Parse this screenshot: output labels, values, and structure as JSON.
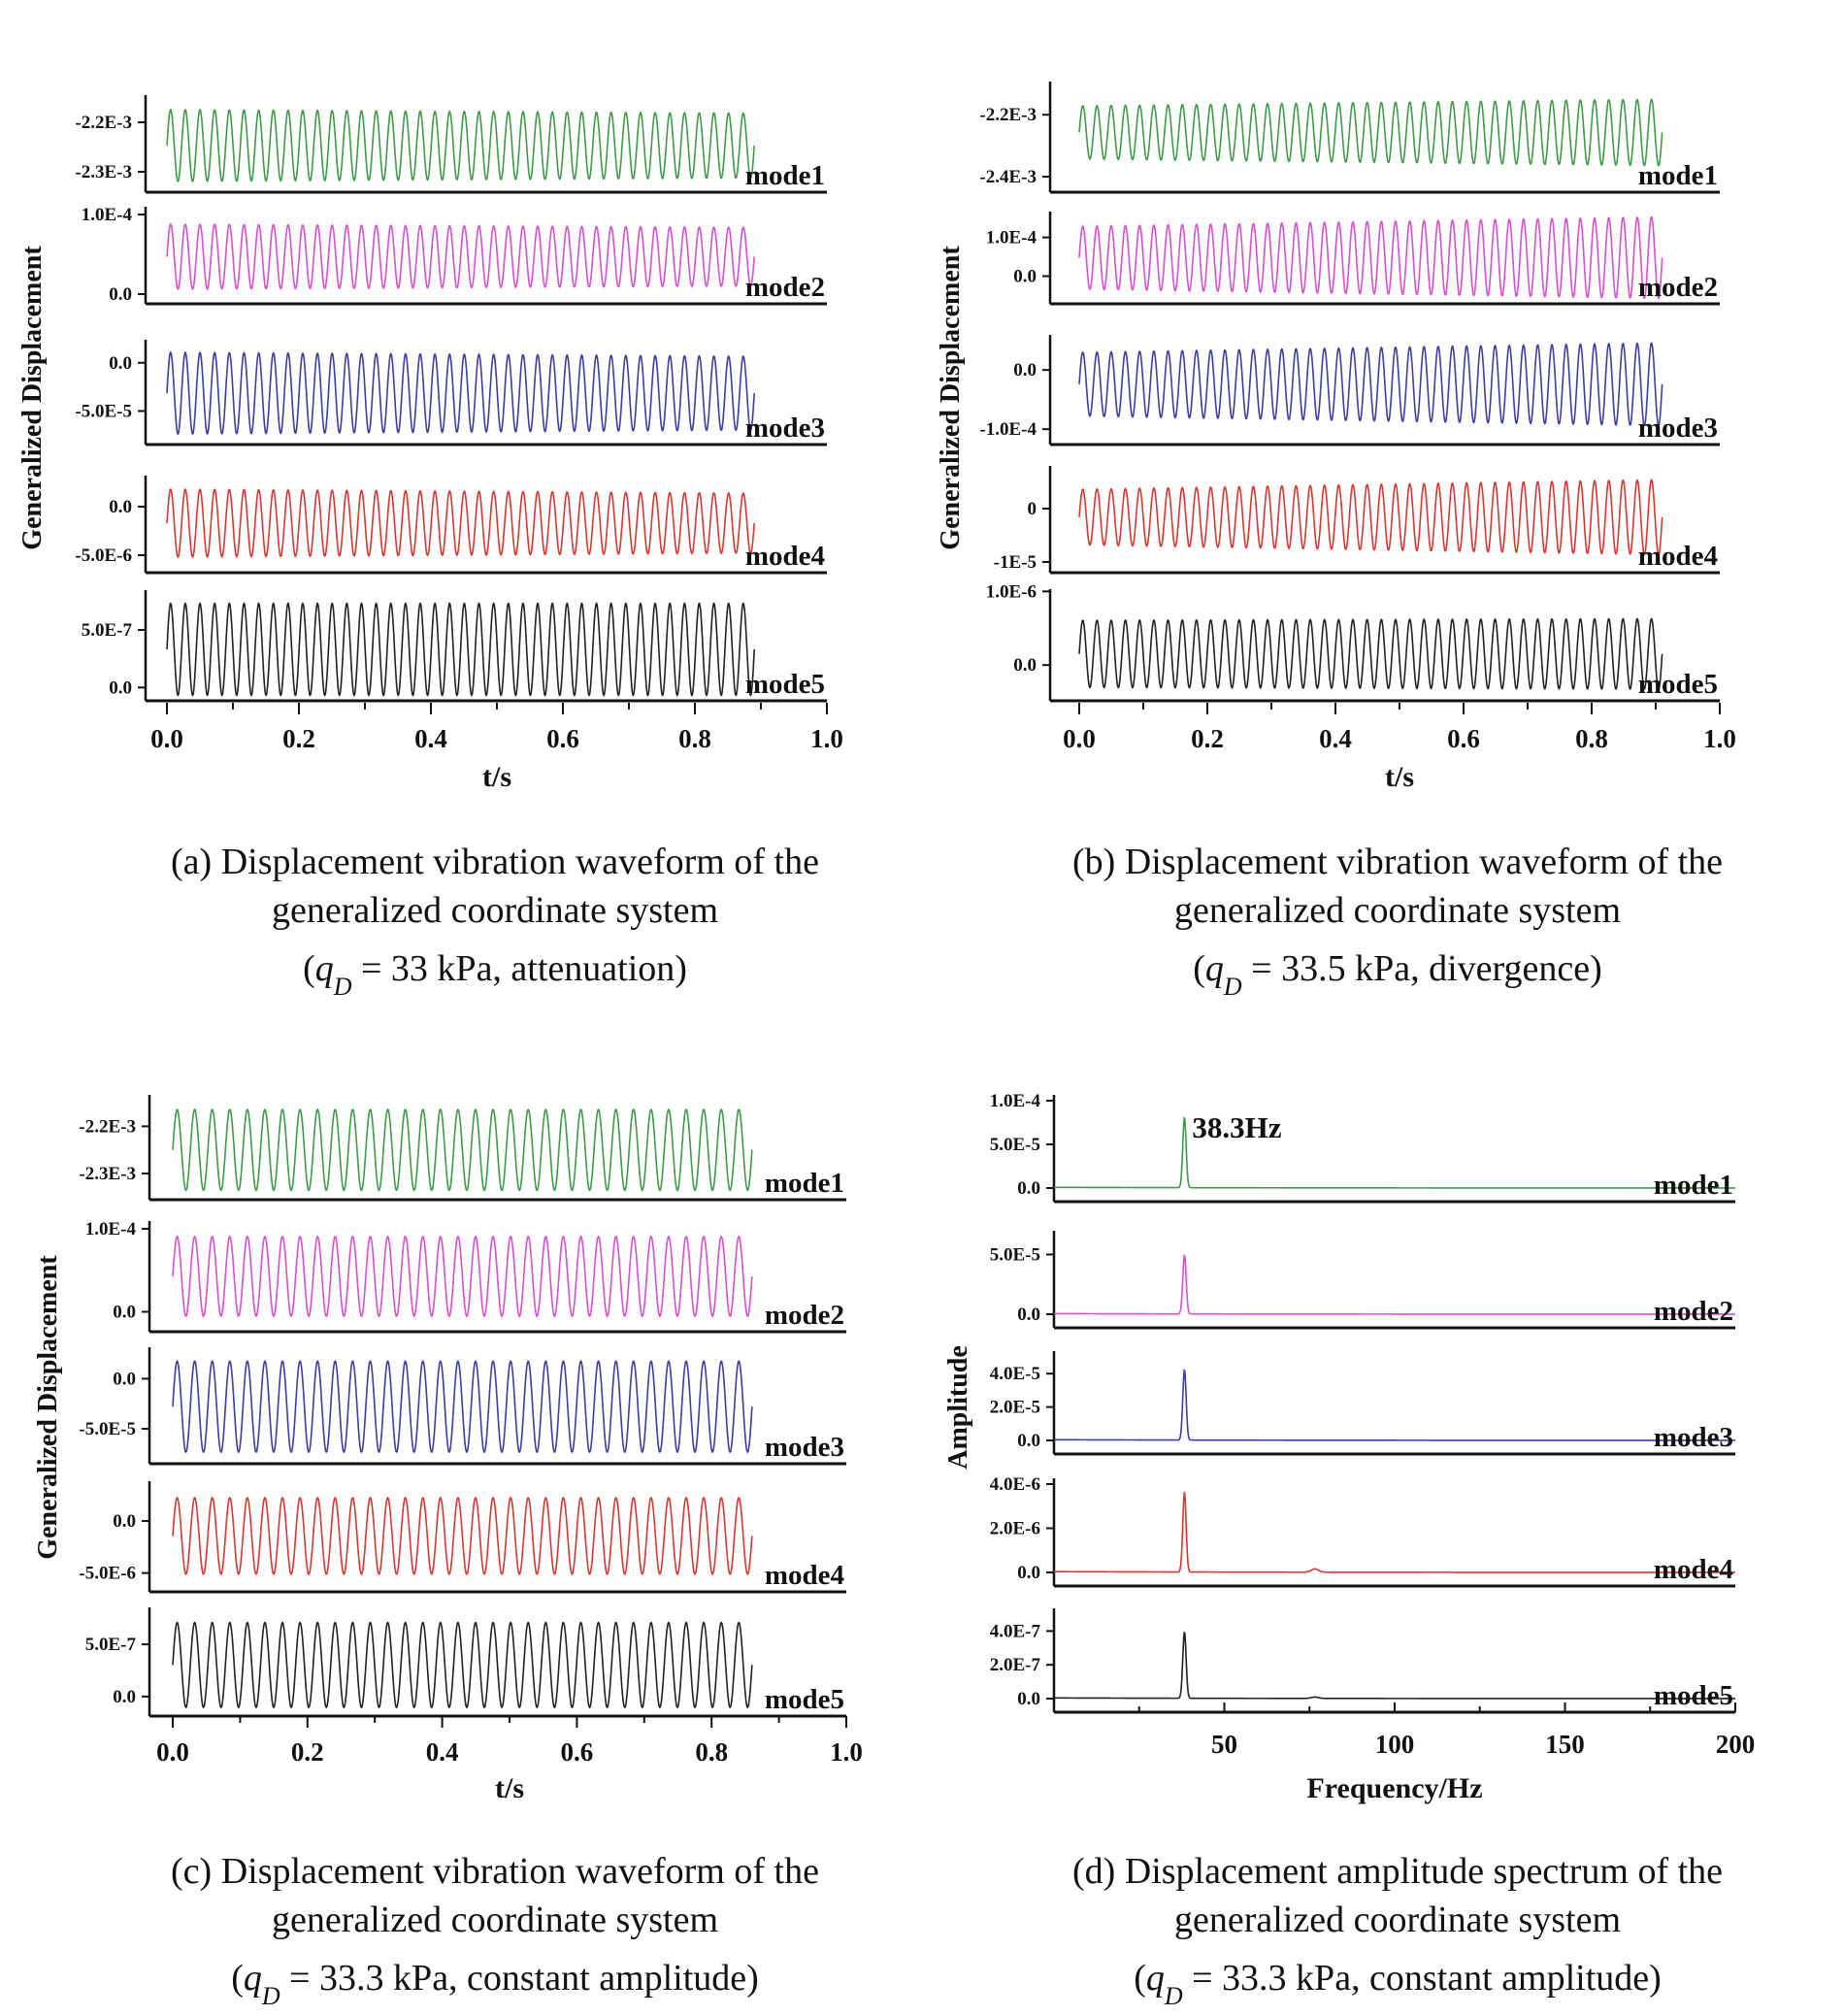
{
  "chart_data": [
    {
      "id": "a",
      "type": "line",
      "kind": "waveform",
      "xlabel": "t/s",
      "ylabel": "Generalized Displacement",
      "xlim": [
        0,
        1.0
      ],
      "xticks": [
        "0.0",
        "0.2",
        "0.4",
        "0.6",
        "0.8",
        "1.0"
      ],
      "t_end": 0.89,
      "cycles": 40,
      "trend": "attenuation",
      "caption": {
        "line1": "(a) Displacement vibration waveform of the",
        "line2": "generalized coordinate system",
        "pre": "(",
        "q": "q",
        "sub": "D",
        "post": " = 33 kPa, attenuation)"
      },
      "series": [
        {
          "name": "mode1",
          "color": "#3e9b45",
          "ticks": [
            "-2.2E-3",
            "-2.3E-3"
          ],
          "top_tick": 0.72,
          "bot_tick": 0.21,
          "hi": 0.85,
          "lo": 0.11,
          "amp_ratio": 0.9
        },
        {
          "name": "mode2",
          "color": "#d84fcf",
          "ticks": [
            "1.0E-4",
            "0.0"
          ],
          "top_tick": 0.92,
          "bot_tick": 0.1,
          "hi": 0.82,
          "lo": 0.15,
          "amp_ratio": 0.9
        },
        {
          "name": "mode3",
          "color": "#3b3ea3",
          "ticks": [
            "0.0",
            "-5.0E-5"
          ],
          "top_tick": 0.78,
          "bot_tick": 0.32,
          "hi": 0.88,
          "lo": 0.1,
          "amp_ratio": 0.9
        },
        {
          "name": "mode4",
          "color": "#d9362f",
          "ticks": [
            "0.0",
            "-5.0E-6"
          ],
          "top_tick": 0.68,
          "bot_tick": 0.18,
          "hi": 0.86,
          "lo": 0.16,
          "amp_ratio": 0.88
        },
        {
          "name": "mode5",
          "color": "#222222",
          "ticks": [
            "5.0E-7",
            "0.0"
          ],
          "top_tick": 0.64,
          "bot_tick": 0.12,
          "hi": 0.88,
          "lo": 0.05,
          "amp_ratio": 1.0
        }
      ]
    },
    {
      "id": "b",
      "type": "line",
      "kind": "waveform",
      "xlabel": "t/s",
      "ylabel": "Generalized Displacement",
      "xlim": [
        0,
        1.0
      ],
      "xticks": [
        "0.0",
        "0.2",
        "0.4",
        "0.6",
        "0.8",
        "1.0"
      ],
      "t_end": 0.91,
      "cycles": 41,
      "trend": "divergence",
      "caption": {
        "line1": "(b) Displacement vibration waveform of the",
        "line2": "generalized coordinate system",
        "pre": "(",
        "q": "q",
        "sub": "D",
        "post": " = 33.5 kPa, divergence)"
      },
      "series": [
        {
          "name": "mode1",
          "color": "#3e9b45",
          "ticks": [
            "-2.2E-3",
            "-2.4E-3"
          ],
          "top_tick": 0.7,
          "bot_tick": 0.14,
          "hi": 0.78,
          "lo": 0.3,
          "amp_ratio": 1.25
        },
        {
          "name": "mode2",
          "color": "#d84fcf",
          "ticks": [
            "1.0E-4",
            "0.0"
          ],
          "top_tick": 0.72,
          "bot_tick": 0.3,
          "hi": 0.84,
          "lo": 0.16,
          "amp_ratio": 1.3
        },
        {
          "name": "mode3",
          "color": "#3b3ea3",
          "ticks": [
            "0.0",
            "-1.0E-4"
          ],
          "top_tick": 0.68,
          "bot_tick": 0.14,
          "hi": 0.84,
          "lo": 0.26,
          "amp_ratio": 1.3
        },
        {
          "name": "mode4",
          "color": "#d9362f",
          "ticks": [
            "0",
            "-1E-5"
          ],
          "top_tick": 0.6,
          "bot_tick": 0.1,
          "hi": 0.78,
          "lo": 0.26,
          "amp_ratio": 1.35
        },
        {
          "name": "mode5",
          "color": "#222222",
          "ticks": [
            "1.0E-6",
            "0.0"
          ],
          "top_tick": 0.98,
          "bot_tick": 0.32,
          "hi": 0.72,
          "lo": 0.12,
          "amp_ratio": 1.05
        }
      ]
    },
    {
      "id": "c",
      "type": "line",
      "kind": "waveform",
      "xlabel": "t/s",
      "ylabel": "Generalized Displacement",
      "xlim": [
        0,
        1.0
      ],
      "xticks": [
        "0.0",
        "0.2",
        "0.4",
        "0.6",
        "0.8",
        "1.0"
      ],
      "t_end": 0.86,
      "cycles": 33,
      "trend": "constant amplitude",
      "caption": {
        "line1": "(c) Displacement vibration waveform of the",
        "line2": "generalized coordinate system",
        "pre": "(",
        "q": "q",
        "sub": "D",
        "post": " = 33.3 kPa, constant amplitude)"
      },
      "series": [
        {
          "name": "mode1",
          "color": "#3e9b45",
          "ticks": [
            "-2.2E-3",
            "-2.3E-3"
          ],
          "top_tick": 0.7,
          "bot_tick": 0.25,
          "hi": 0.86,
          "lo": 0.09,
          "amp_ratio": 1.0
        },
        {
          "name": "mode2",
          "color": "#d84fcf",
          "ticks": [
            "1.0E-4",
            "0.0"
          ],
          "top_tick": 0.93,
          "bot_tick": 0.18,
          "hi": 0.86,
          "lo": 0.14,
          "amp_ratio": 1.0
        },
        {
          "name": "mode3",
          "color": "#3b3ea3",
          "ticks": [
            "0.0",
            "-5.0E-5"
          ],
          "top_tick": 0.73,
          "bot_tick": 0.3,
          "hi": 0.88,
          "lo": 0.1,
          "amp_ratio": 1.0
        },
        {
          "name": "mode4",
          "color": "#d9362f",
          "ticks": [
            "0.0",
            "-5.0E-6"
          ],
          "top_tick": 0.64,
          "bot_tick": 0.17,
          "hi": 0.85,
          "lo": 0.16,
          "amp_ratio": 1.0
        },
        {
          "name": "mode5",
          "color": "#222222",
          "ticks": [
            "5.0E-7",
            "0.0"
          ],
          "top_tick": 0.66,
          "bot_tick": 0.18,
          "hi": 0.86,
          "lo": 0.08,
          "amp_ratio": 1.0
        }
      ]
    },
    {
      "id": "d",
      "type": "line",
      "kind": "spectrum",
      "xlabel": "Frequency/Hz",
      "ylabel": "Amplitude",
      "xlim": [
        0,
        200
      ],
      "xticks": [
        "50",
        "100",
        "150",
        "200"
      ],
      "xtick_values": [
        50,
        100,
        150,
        200
      ],
      "peak_hz": 38.3,
      "annotation": "38.3Hz",
      "caption": {
        "line1": "(d) Displacement amplitude spectrum of the",
        "line2": "generalized coordinate system",
        "pre": "(",
        "q": "q",
        "sub": "D",
        "post": " = 33.3 kPa, constant amplitude)"
      },
      "series": [
        {
          "name": "mode1",
          "color": "#3e9b45",
          "ticks": [
            "1.0E-4",
            "5.0E-5",
            "0.0"
          ],
          "ymax": 0.0001,
          "peak": 8e-05,
          "harmonic": 0
        },
        {
          "name": "mode2",
          "color": "#d84fcf",
          "ticks": [
            "5.0E-5",
            "0.0"
          ],
          "ymax": 6.5e-05,
          "peak": 4.9e-05,
          "harmonic": 0
        },
        {
          "name": "mode3",
          "color": "#3b3ea3",
          "ticks": [
            "4.0E-5",
            "2.0E-5",
            "0.0"
          ],
          "ymax": 5e-05,
          "peak": 4.2e-05,
          "harmonic": 0
        },
        {
          "name": "mode4",
          "color": "#d9362f",
          "ticks": [
            "4.0E-6",
            "2.0E-6",
            "0.0"
          ],
          "ymax": 4e-06,
          "peak": 3.6e-06,
          "harmonic": 1.5e-07
        },
        {
          "name": "mode5",
          "color": "#222222",
          "ticks": [
            "4.0E-7",
            "2.0E-7",
            "0.0"
          ],
          "ymax": 5e-07,
          "peak": 3.9e-07,
          "harmonic": 8e-09
        }
      ]
    }
  ]
}
